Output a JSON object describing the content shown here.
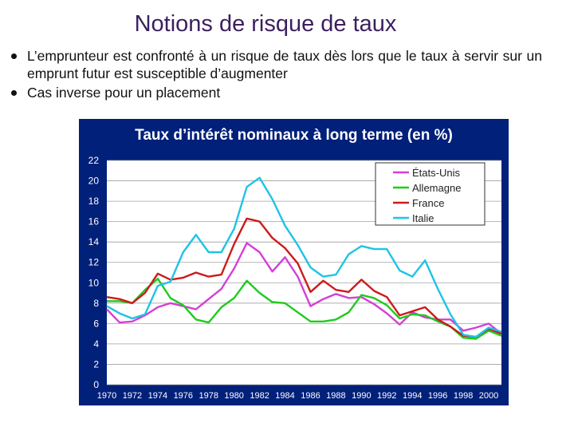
{
  "title": "Notions de risque de taux",
  "bullets": [
    "L’emprunteur est confronté à un risque de taux dès lors que le taux à servir sur un emprunt futur est susceptible d’augmenter",
    "Cas inverse pour un placement"
  ],
  "colors": {
    "title": "#3b1f5e",
    "chart_bg": "#00207a",
    "plot_bg": "#ffffff"
  },
  "chart_data": {
    "type": "line",
    "title": "Taux d’intérêt nominaux à long terme (en %)",
    "xlabel": "",
    "ylabel": "",
    "xlim": [
      1970,
      2001
    ],
    "ylim": [
      0,
      22
    ],
    "x_ticks": [
      "1970",
      "1972",
      "1974",
      "1976",
      "1978",
      "1980",
      "1982",
      "1984",
      "1986",
      "1988",
      "1990",
      "1992",
      "1994",
      "1996",
      "1998",
      "2000"
    ],
    "y_ticks": [
      "0",
      "2",
      "4",
      "6",
      "8",
      "10",
      "12",
      "14",
      "16",
      "18",
      "20",
      "22"
    ],
    "grid": "horizontal",
    "legend_position": "top-right",
    "x": [
      1970,
      1971,
      1972,
      1973,
      1974,
      1975,
      1976,
      1977,
      1978,
      1979,
      1980,
      1981,
      1982,
      1983,
      1984,
      1985,
      1986,
      1987,
      1988,
      1989,
      1990,
      1991,
      1992,
      1993,
      1994,
      1995,
      1996,
      1997,
      1998,
      1999,
      2000,
      2001
    ],
    "series": [
      {
        "name": "États-Unis",
        "color": "#d43fd4",
        "values": [
          7.4,
          6.1,
          6.2,
          6.8,
          7.6,
          8.0,
          7.7,
          7.4,
          8.4,
          9.4,
          11.4,
          13.9,
          13.0,
          11.1,
          12.5,
          10.6,
          7.7,
          8.4,
          8.9,
          8.5,
          8.6,
          7.9,
          7.0,
          5.9,
          7.1,
          6.6,
          6.4,
          6.4,
          5.3,
          5.6,
          6.0,
          5.0
        ]
      },
      {
        "name": "Allemagne",
        "color": "#1ecb1e",
        "values": [
          8.2,
          8.2,
          8.0,
          9.3,
          10.4,
          8.5,
          7.8,
          6.4,
          6.1,
          7.6,
          8.5,
          10.2,
          9.0,
          8.1,
          8.0,
          7.1,
          6.2,
          6.2,
          6.4,
          7.1,
          8.8,
          8.5,
          7.8,
          6.5,
          6.9,
          6.8,
          6.2,
          5.7,
          4.6,
          4.5,
          5.3,
          4.8
        ]
      },
      {
        "name": "France",
        "color": "#cc1b1b",
        "values": [
          8.6,
          8.4,
          8.0,
          9.0,
          10.9,
          10.3,
          10.5,
          11.0,
          10.6,
          10.8,
          13.8,
          16.3,
          16.0,
          14.4,
          13.4,
          11.9,
          9.1,
          10.2,
          9.3,
          9.1,
          10.3,
          9.2,
          8.6,
          6.8,
          7.2,
          7.6,
          6.4,
          5.7,
          4.8,
          4.7,
          5.5,
          5.0
        ]
      },
      {
        "name": "Italie",
        "color": "#1fc3e6",
        "values": [
          7.7,
          7.0,
          6.5,
          6.9,
          9.7,
          10.1,
          13.0,
          14.7,
          13.0,
          13.0,
          15.3,
          19.4,
          20.3,
          18.2,
          15.6,
          13.7,
          11.5,
          10.6,
          10.8,
          12.8,
          13.6,
          13.3,
          13.3,
          11.2,
          10.6,
          12.2,
          9.4,
          6.9,
          4.9,
          4.7,
          5.6,
          5.2
        ]
      }
    ]
  }
}
